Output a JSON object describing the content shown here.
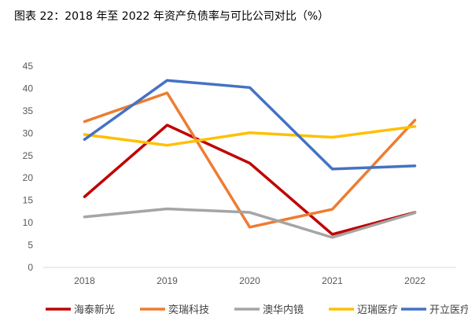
{
  "title": "图表 22：2018 年至 2022 年资产负债率与可比公司对比（%）",
  "chart_data": {
    "type": "line",
    "categories": [
      "2018",
      "2019",
      "2020",
      "2021",
      "2022"
    ],
    "ylim": [
      0,
      45
    ],
    "yticks": [
      0,
      5,
      10,
      15,
      20,
      25,
      30,
      35,
      40,
      45
    ],
    "grid": false,
    "legend": "bottom",
    "series": [
      {
        "name": "海泰新光",
        "color": "#c00000",
        "values": [
          15.8,
          31.8,
          23.3,
          7.4,
          12.3
        ]
      },
      {
        "name": "奕瑞科技",
        "color": "#ed7d31",
        "values": [
          32.6,
          39.0,
          9.0,
          13.0,
          32.9
        ]
      },
      {
        "name": "澳华内镜",
        "color": "#a5a5a5",
        "values": [
          11.3,
          13.1,
          12.3,
          6.7,
          12.2
        ]
      },
      {
        "name": "迈瑞医疗",
        "color": "#ffc000",
        "values": [
          29.7,
          27.3,
          30.1,
          29.1,
          31.5
        ]
      },
      {
        "name": "开立医疗",
        "color": "#4472c4",
        "values": [
          28.6,
          41.8,
          40.2,
          22.0,
          22.7
        ]
      }
    ]
  }
}
